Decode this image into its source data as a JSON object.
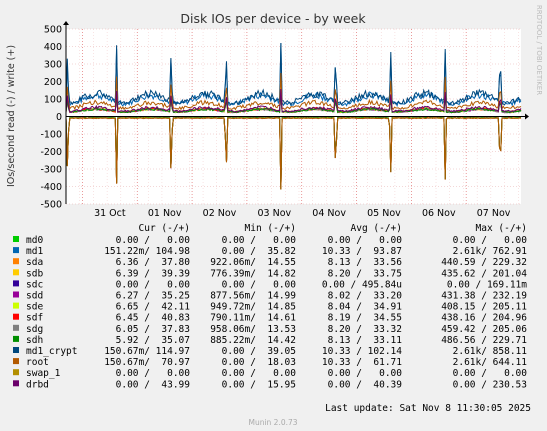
{
  "chart_data": {
    "type": "line",
    "title": "Disk IOs per device - by week",
    "ylabel": "IOs/second read (-) / write (+)",
    "ylim": [
      -500,
      500
    ],
    "yticks": [
      -500,
      -400,
      -300,
      -200,
      -100,
      0,
      100,
      200,
      300,
      400,
      500
    ],
    "xticks": [
      "31 Oct",
      "01 Nov",
      "02 Nov",
      "03 Nov",
      "04 Nov",
      "05 Nov",
      "06 Nov",
      "07 Nov"
    ],
    "x_range_days": 8.3,
    "grid": true,
    "legend_position": "bottom",
    "columns": [
      "Cur (-/+)",
      "Min (-/+)",
      "Avg (-/+)",
      "Max (-/+)"
    ],
    "series": [
      {
        "name": "md0",
        "color": "#00cc00",
        "cur": "0.00 /   0.00",
        "min": "0.00 /   0.00",
        "avg": "0.00 /   0.00",
        "max": "0.00 /   0.00",
        "write_base": 0,
        "read_base": 0
      },
      {
        "name": "md1",
        "color": "#0066b3",
        "cur": "151.22m/ 104.98",
        "min": "0.00 /  35.82",
        "avg": "10.33 /  93.87",
        "max": "2.61k/ 762.91",
        "write_base": 95,
        "read_base": 0
      },
      {
        "name": "sda",
        "color": "#ff8000",
        "cur": "6.36 /  37.80",
        "min": "922.06m/  14.55",
        "avg": "8.13 /  33.56",
        "max": "440.59 / 229.32",
        "write_base": 34,
        "read_base": -8
      },
      {
        "name": "sdb",
        "color": "#ffcc00",
        "cur": "6.39 /  39.39",
        "min": "776.39m/  14.82",
        "avg": "8.20 /  33.75",
        "max": "435.62 / 201.04",
        "write_base": 34,
        "read_base": -8
      },
      {
        "name": "sdc",
        "color": "#330099",
        "cur": "0.00 /   0.00",
        "min": "0.00 /   0.00",
        "avg": "0.00 / 495.84u",
        "max": "0.00 / 169.11m",
        "write_base": 0,
        "read_base": 0
      },
      {
        "name": "sdd",
        "color": "#990099",
        "cur": "6.27 /  35.25",
        "min": "877.56m/  14.99",
        "avg": "8.02 /  33.20",
        "max": "431.38 / 232.19",
        "write_base": 33,
        "read_base": -8
      },
      {
        "name": "sde",
        "color": "#ccff00",
        "cur": "6.65 /  42.11",
        "min": "949.72m/  14.85",
        "avg": "8.04 /  34.91",
        "max": "408.15 / 205.11",
        "write_base": 35,
        "read_base": -8
      },
      {
        "name": "sdf",
        "color": "#ff0000",
        "cur": "6.45 /  40.83",
        "min": "790.11m/  14.61",
        "avg": "8.19 /  34.55",
        "max": "438.16 / 204.96",
        "write_base": 35,
        "read_base": -8
      },
      {
        "name": "sdg",
        "color": "#808080",
        "cur": "6.05 /  37.83",
        "min": "958.06m/  13.53",
        "avg": "8.20 /  33.32",
        "max": "459.42 / 205.06",
        "write_base": 33,
        "read_base": -8
      },
      {
        "name": "sdh",
        "color": "#008f00",
        "cur": "5.92 /  35.07",
        "min": "885.22m/  14.42",
        "avg": "8.13 /  33.11",
        "max": "486.56 / 229.71",
        "write_base": 33,
        "read_base": -8
      },
      {
        "name": "md1_crypt",
        "color": "#00487d",
        "cur": "150.67m/ 114.97",
        "min": "0.00 /  39.05",
        "avg": "10.33 / 102.14",
        "max": "2.61k/ 858.11",
        "write_base": 102,
        "read_base": 0
      },
      {
        "name": "root",
        "color": "#b35a00",
        "cur": "150.67m/  70.97",
        "min": "0.00 /  18.03",
        "avg": "10.33 /  61.71",
        "max": "2.61k/ 644.11",
        "write_base": 62,
        "read_base": -10
      },
      {
        "name": "swap_1",
        "color": "#b38f00",
        "cur": "0.00 /   0.00",
        "min": "0.00 /   0.00",
        "avg": "0.00 /   0.00",
        "max": "0.00 /   0.00",
        "write_base": 0,
        "read_base": 0
      },
      {
        "name": "drbd",
        "color": "#6b006b",
        "cur": "0.00 /  43.99",
        "min": "0.00 /  15.95",
        "avg": "0.00 /  40.39",
        "max": "0.00 / 230.53",
        "write_base": 40,
        "read_base": 0
      }
    ],
    "spike_days": [
      0.03,
      0.92,
      1.92,
      2.92,
      3.92,
      4.92,
      5.92,
      6.92,
      7.92
    ],
    "last_update": "Last update: Sat Nov  8 11:30:05 2025",
    "side_label": "RRDTOOL / TOBI OETIKER",
    "footer": "Munin 2.0.73"
  }
}
